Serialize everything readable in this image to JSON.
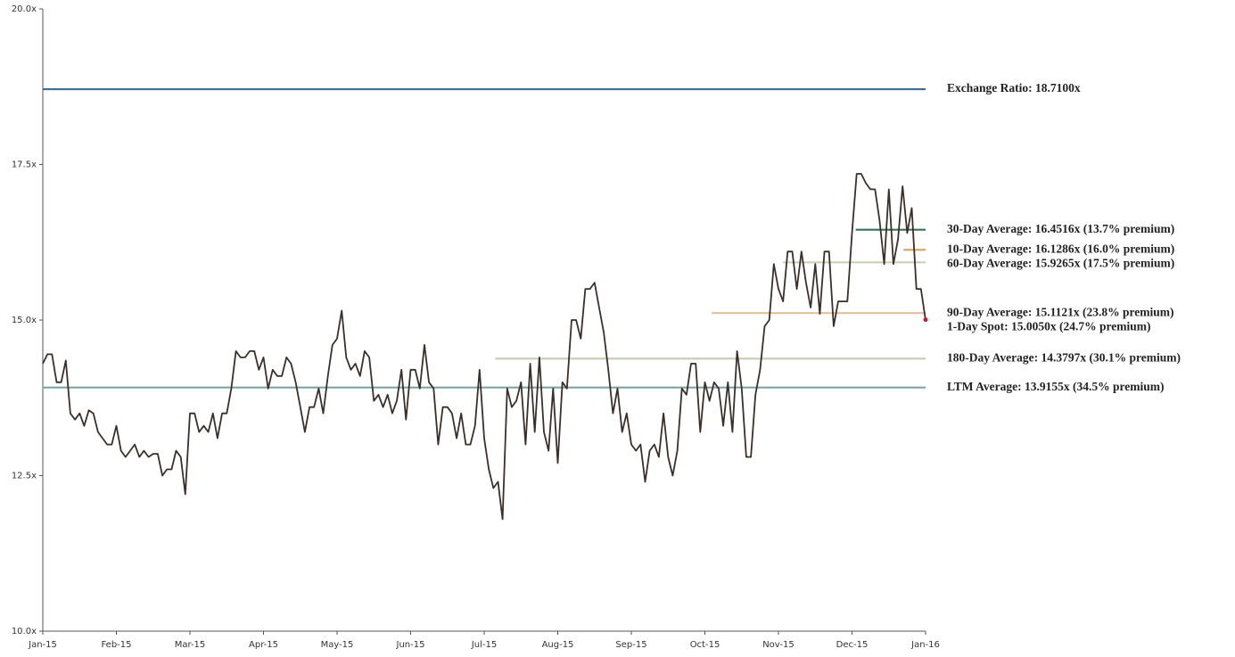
{
  "chart_data": {
    "type": "line",
    "ylim": [
      10,
      20
    ],
    "yticks": [
      {
        "value": 10,
        "label": "10.0x"
      },
      {
        "value": 12.5,
        "label": "12.5x"
      },
      {
        "value": 15,
        "label": "15.0x"
      },
      {
        "value": 17.5,
        "label": "17.5x"
      },
      {
        "value": 20,
        "label": "20.0x"
      }
    ],
    "xlim": [
      0,
      12
    ],
    "xticks": [
      {
        "value": 0,
        "label": "Jan-15"
      },
      {
        "value": 1,
        "label": "Feb-15"
      },
      {
        "value": 2,
        "label": "Mar-15"
      },
      {
        "value": 3,
        "label": "Apr-15"
      },
      {
        "value": 4,
        "label": "May-15"
      },
      {
        "value": 5,
        "label": "Jun-15"
      },
      {
        "value": 6,
        "label": "Jul-15"
      },
      {
        "value": 7,
        "label": "Aug-15"
      },
      {
        "value": 8,
        "label": "Sep-15"
      },
      {
        "value": 9,
        "label": "Oct-15"
      },
      {
        "value": 10,
        "label": "Nov-15"
      },
      {
        "value": 11,
        "label": "Dec-15"
      },
      {
        "value": 12,
        "label": "Jan-16"
      }
    ],
    "series": [
      {
        "color": "#3b2f2a",
        "values": [
          14.3,
          14.45,
          14.45,
          14.0,
          14.0,
          14.35,
          13.5,
          13.4,
          13.5,
          13.3,
          13.55,
          13.5,
          13.2,
          13.1,
          13.0,
          13.0,
          13.3,
          12.9,
          12.8,
          12.9,
          13.0,
          12.8,
          12.9,
          12.8,
          12.85,
          12.85,
          12.5,
          12.6,
          12.6,
          12.9,
          12.8,
          12.2,
          13.5,
          13.5,
          13.2,
          13.3,
          13.2,
          13.5,
          13.1,
          13.5,
          13.5,
          13.9,
          14.5,
          14.4,
          14.4,
          14.5,
          14.5,
          14.2,
          14.4,
          13.9,
          14.2,
          14.1,
          14.1,
          14.4,
          14.3,
          14.0,
          13.6,
          13.2,
          13.6,
          13.6,
          13.9,
          13.5,
          14.1,
          14.6,
          14.7,
          15.15,
          14.4,
          14.2,
          14.3,
          14.1,
          14.5,
          14.4,
          13.7,
          13.8,
          13.6,
          13.8,
          13.5,
          13.7,
          14.2,
          13.4,
          14.2,
          14.2,
          13.9,
          14.6,
          14.0,
          13.9,
          13.0,
          13.6,
          13.6,
          13.5,
          13.1,
          13.5,
          13.0,
          13.0,
          13.3,
          14.2,
          13.1,
          12.6,
          12.3,
          12.4,
          11.8,
          13.9,
          13.6,
          13.7,
          14.0,
          13.0,
          14.3,
          13.2,
          14.4,
          13.2,
          12.9,
          13.9,
          12.7,
          14.0,
          13.9,
          15.0,
          15.0,
          14.7,
          15.5,
          15.5,
          15.6,
          15.2,
          14.8,
          14.2,
          13.5,
          13.9,
          13.2,
          13.5,
          13.0,
          12.9,
          13.0,
          12.4,
          12.9,
          13.0,
          12.8,
          13.5,
          12.8,
          12.5,
          12.9,
          13.9,
          13.8,
          14.3,
          14.3,
          13.2,
          14.0,
          13.7,
          14.0,
          13.9,
          13.3,
          14.0,
          13.2,
          14.5,
          13.9,
          12.8,
          12.8,
          13.8,
          14.2,
          14.9,
          15.0,
          15.9,
          15.5,
          15.3,
          16.1,
          16.1,
          15.5,
          16.1,
          15.6,
          15.2,
          15.9,
          15.1,
          16.1,
          16.1,
          14.9,
          15.3,
          15.3,
          15.3,
          16.4,
          17.35,
          17.35,
          17.2,
          17.1,
          17.1,
          16.6,
          15.9,
          17.1,
          15.9,
          16.3,
          17.15,
          16.4,
          16.8,
          15.5,
          15.5,
          15.0
        ]
      }
    ],
    "reference_lines": [
      {
        "label": "Exchange Ratio: 18.7100x",
        "value": 18.71,
        "start": 0,
        "color": "#3e6e97"
      },
      {
        "label": "30-Day Average: 16.4516x (13.7% premium)",
        "value": 16.4516,
        "start": 11.05,
        "color": "#3d6e5a"
      },
      {
        "label": "10-Day Average: 16.1286x (16.0% premium)",
        "value": 16.1286,
        "start": 11.7,
        "color": "#d9a868"
      },
      {
        "label": "60-Day Average: 15.9265x (17.5% premium)",
        "value": 15.9265,
        "start": 10.06,
        "color": "#c9d1b8"
      },
      {
        "label": "90-Day Average: 15.1121x (23.8% premium)",
        "value": 15.1121,
        "start": 9.09,
        "color": "#e3c19c"
      },
      {
        "label": "180-Day Average: 14.3797x (30.1% premium)",
        "value": 14.3797,
        "start": 6.15,
        "color": "#c3cdb0"
      },
      {
        "label": "LTM Average: 13.9155x (34.5% premium)",
        "value": 13.9155,
        "start": 0,
        "color": "#7fa3a3"
      }
    ],
    "spot": {
      "label": "1-Day Spot: 15.0050x (24.7% premium)",
      "value": 15.005,
      "color": "#c0202a"
    }
  }
}
